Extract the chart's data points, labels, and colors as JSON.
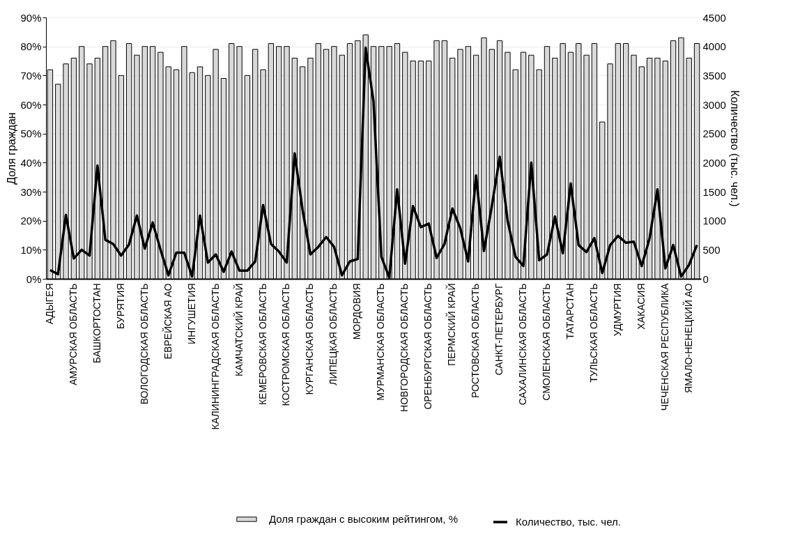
{
  "chart_data": {
    "type": "bar",
    "ylabel": "Доля граждан",
    "y2label": "Количество (тыс. чел.)",
    "categories": [
      "АДЫГЕЯ",
      null,
      null,
      "АМУРСКАЯ ОБЛАСТЬ",
      null,
      null,
      "БАШКОРТОСТАН",
      null,
      null,
      "БУРЯТИЯ",
      null,
      null,
      "ВОЛОГОДСКАЯ ОБЛАСТЬ",
      null,
      null,
      "ЕВРЕЙСКАЯ АО",
      null,
      null,
      "ИНГУШЕТИЯ",
      null,
      null,
      "КАЛИНИНГРАДСКАЯ ОБЛАСТЬ",
      null,
      null,
      "КАМЧАТСКИЙ КРАЙ",
      null,
      null,
      "КЕМЕРОВСКАЯ ОБЛАСТЬ",
      null,
      null,
      "КОСТРОМСКАЯ ОБЛАСТЬ",
      null,
      null,
      "КУРГАНСКАЯ ОБЛАСТЬ",
      null,
      null,
      "ЛИПЕЦКАЯ ОБЛАСТЬ",
      null,
      null,
      "МОРДОВИЯ",
      null,
      null,
      "МУРМАНСКАЯ ОБЛАСТЬ",
      null,
      null,
      "НОВГОРОДСКАЯ ОБЛАСТЬ",
      null,
      null,
      "ОРЕНБУРГСКАЯ ОБЛАСТЬ",
      null,
      null,
      "ПЕРМСКИЙ КРАЙ",
      null,
      null,
      "РОСТОВСКАЯ ОБЛАСТЬ",
      null,
      null,
      "САНКТ-ПЕТЕРБУРГ",
      null,
      null,
      "САХАЛИНСКАЯ ОБЛАСТЬ",
      null,
      null,
      "СМОЛЕНСКАЯ ОБЛАСТЬ",
      null,
      null,
      "ТАТАРСТАН",
      null,
      null,
      "ТУЛЬСКАЯ ОБЛАСТЬ",
      null,
      null,
      "УДМУРТИЯ",
      null,
      null,
      "ХАКАСИЯ",
      null,
      null,
      "ЧЕЧЕНСКАЯ РЕСПУБЛИКА",
      null,
      null,
      "ЯМАЛО-НЕНЕЦКИЙ АО",
      null
    ],
    "series": [
      {
        "name": "Доля граждан с высоким рейтингом, %",
        "color": "#d9d9d9",
        "values": [
          72,
          67,
          74,
          76,
          80,
          74,
          76,
          80,
          82,
          70,
          81,
          77,
          80,
          80,
          78,
          73,
          72,
          80,
          71,
          73,
          70,
          79,
          69,
          81,
          80,
          70,
          79,
          72,
          81,
          80,
          80,
          76,
          73,
          76,
          81,
          79,
          80,
          77,
          81,
          82,
          84,
          80,
          80,
          80,
          81,
          78,
          75,
          75,
          75,
          82,
          82,
          76,
          79,
          80,
          77,
          83,
          79,
          82,
          78,
          72,
          78,
          77,
          72,
          80,
          76,
          81,
          78,
          81,
          77,
          81,
          54,
          74,
          81,
          81,
          77,
          73,
          76,
          76,
          75,
          82,
          83,
          76,
          81
        ]
      },
      {
        "name": "Количество, тыс. чел.",
        "type": "line",
        "axis": "y2",
        "color": "#000000",
        "values": [
          150,
          80,
          1100,
          350,
          500,
          400,
          1950,
          670,
          600,
          400,
          590,
          1090,
          520,
          970,
          500,
          60,
          450,
          450,
          40,
          1090,
          280,
          420,
          120,
          470,
          140,
          140,
          300,
          1270,
          600,
          470,
          280,
          2160,
          1190,
          420,
          550,
          720,
          550,
          60,
          300,
          340,
          3980,
          3050,
          380,
          20,
          1540,
          260,
          1250,
          890,
          950,
          360,
          600,
          1210,
          870,
          300,
          1780,
          480,
          1250,
          2100,
          1000,
          380,
          220,
          2000,
          320,
          420,
          1070,
          440,
          1640,
          580,
          460,
          700,
          100,
          580,
          740,
          620,
          640,
          220,
          700,
          1540,
          180,
          580,
          40,
          240,
          580
        ]
      }
    ],
    "ylim": [
      0,
      90
    ],
    "yticks": [
      {
        "value": 0,
        "label": "0%"
      },
      {
        "value": 10,
        "label": "10%"
      },
      {
        "value": 20,
        "label": "20%"
      },
      {
        "value": 30,
        "label": "30%"
      },
      {
        "value": 40,
        "label": "40%"
      },
      {
        "value": 50,
        "label": "50%"
      },
      {
        "value": 60,
        "label": "60%"
      },
      {
        "value": 70,
        "label": "70%"
      },
      {
        "value": 80,
        "label": "80%"
      },
      {
        "value": 90,
        "label": "90%"
      }
    ],
    "y2lim": [
      0,
      4500
    ],
    "y2ticks": [
      0,
      500,
      1000,
      1500,
      2000,
      2500,
      3000,
      3500,
      4000,
      4500
    ],
    "grid": "y",
    "legend": "bottom",
    "line_style": "solid"
  }
}
